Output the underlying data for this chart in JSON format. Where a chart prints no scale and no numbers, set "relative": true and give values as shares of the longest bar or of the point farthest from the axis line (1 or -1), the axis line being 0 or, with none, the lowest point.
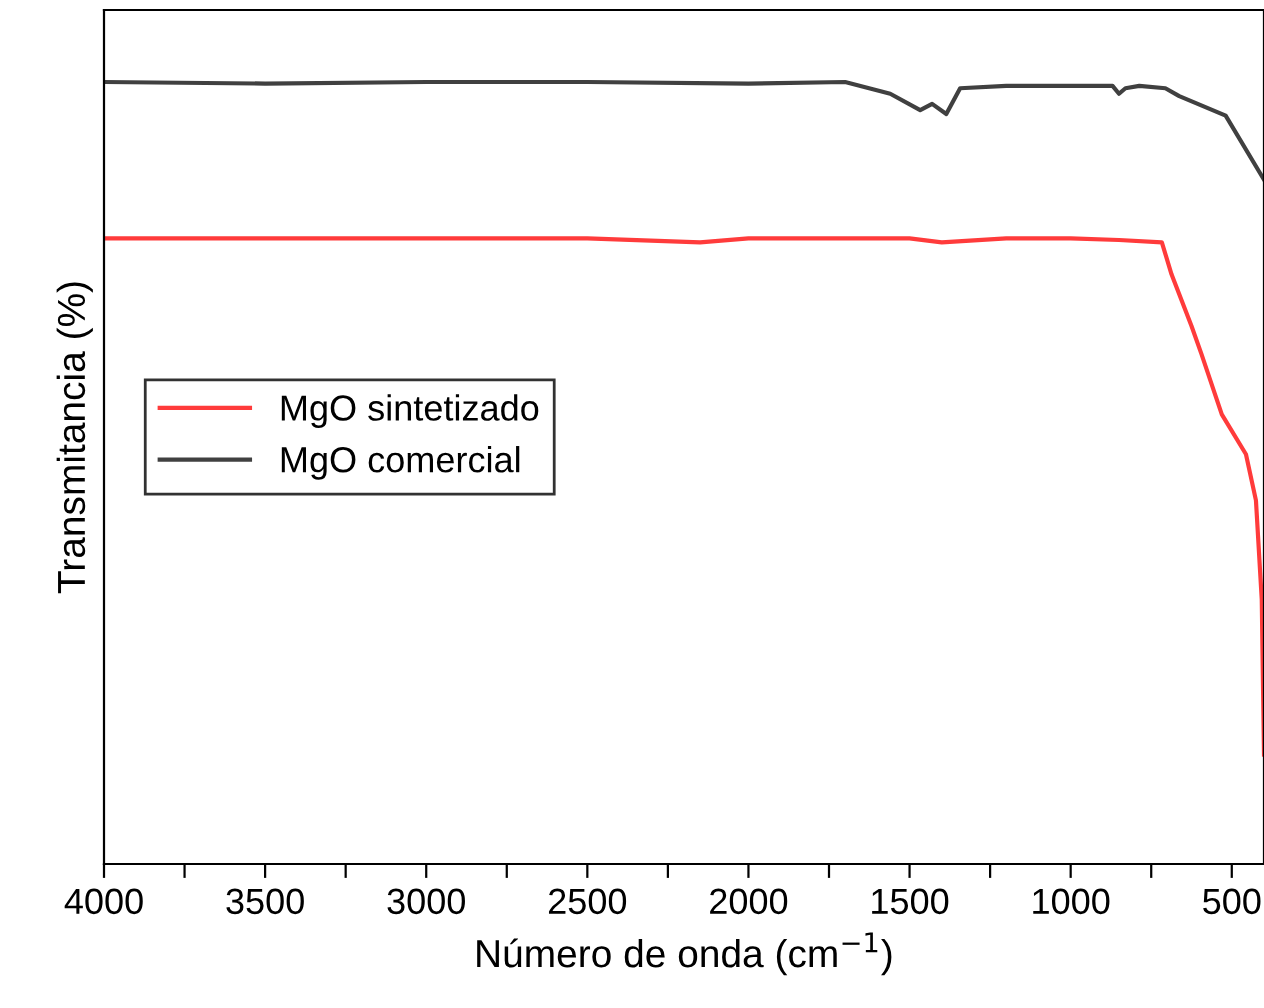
{
  "chart_data": {
    "type": "line",
    "relative": true,
    "xlabel": "Número de onda (cm$^{−1}$)",
    "ylabel": "Transmitancia (%)",
    "xlim": [
      4000,
      400
    ],
    "xticks": [
      4000,
      {
        "value": 3750,
        "label": null
      },
      3500,
      {
        "value": 3250,
        "label": null
      },
      3000,
      {
        "value": 2750,
        "label": null
      },
      2500,
      {
        "value": 2250,
        "label": null
      },
      2000,
      {
        "value": 1750,
        "label": null
      },
      1500,
      {
        "value": 1250,
        "label": null
      },
      1000,
      {
        "value": 750,
        "label": null
      },
      500
    ],
    "legend": "left",
    "grid": false,
    "line_style": "solid",
    "series": [
      {
        "name": "MgO sintetizado",
        "color": "#ff3b3b",
        "x": [
          4000,
          3500,
          3000,
          2500,
          2150,
          2000,
          1500,
          1400,
          1200,
          1000,
          850,
          717,
          687,
          625,
          594,
          531,
          456,
          425,
          407,
          400
        ],
        "values": [
          0.8,
          0.8,
          0.8,
          0.8,
          0.795,
          0.8,
          0.8,
          0.795,
          0.8,
          0.8,
          0.798,
          0.795,
          0.754,
          0.688,
          0.652,
          0.575,
          0.524,
          0.465,
          0.338,
          0.14
        ]
      },
      {
        "name": "MgO comercial",
        "color": "#404040",
        "x": [
          4000,
          3500,
          3000,
          2500,
          2000,
          1700,
          1560,
          1467,
          1430,
          1386,
          1343,
          1200,
          1000,
          870,
          850,
          830,
          787,
          706,
          663,
          519,
          400
        ],
        "values": [
          1.0,
          0.998,
          1.0,
          1.0,
          0.998,
          1.0,
          0.985,
          0.964,
          0.972,
          0.959,
          0.992,
          0.995,
          0.995,
          0.995,
          0.985,
          0.992,
          0.995,
          0.992,
          0.982,
          0.957,
          0.875
        ]
      }
    ]
  }
}
